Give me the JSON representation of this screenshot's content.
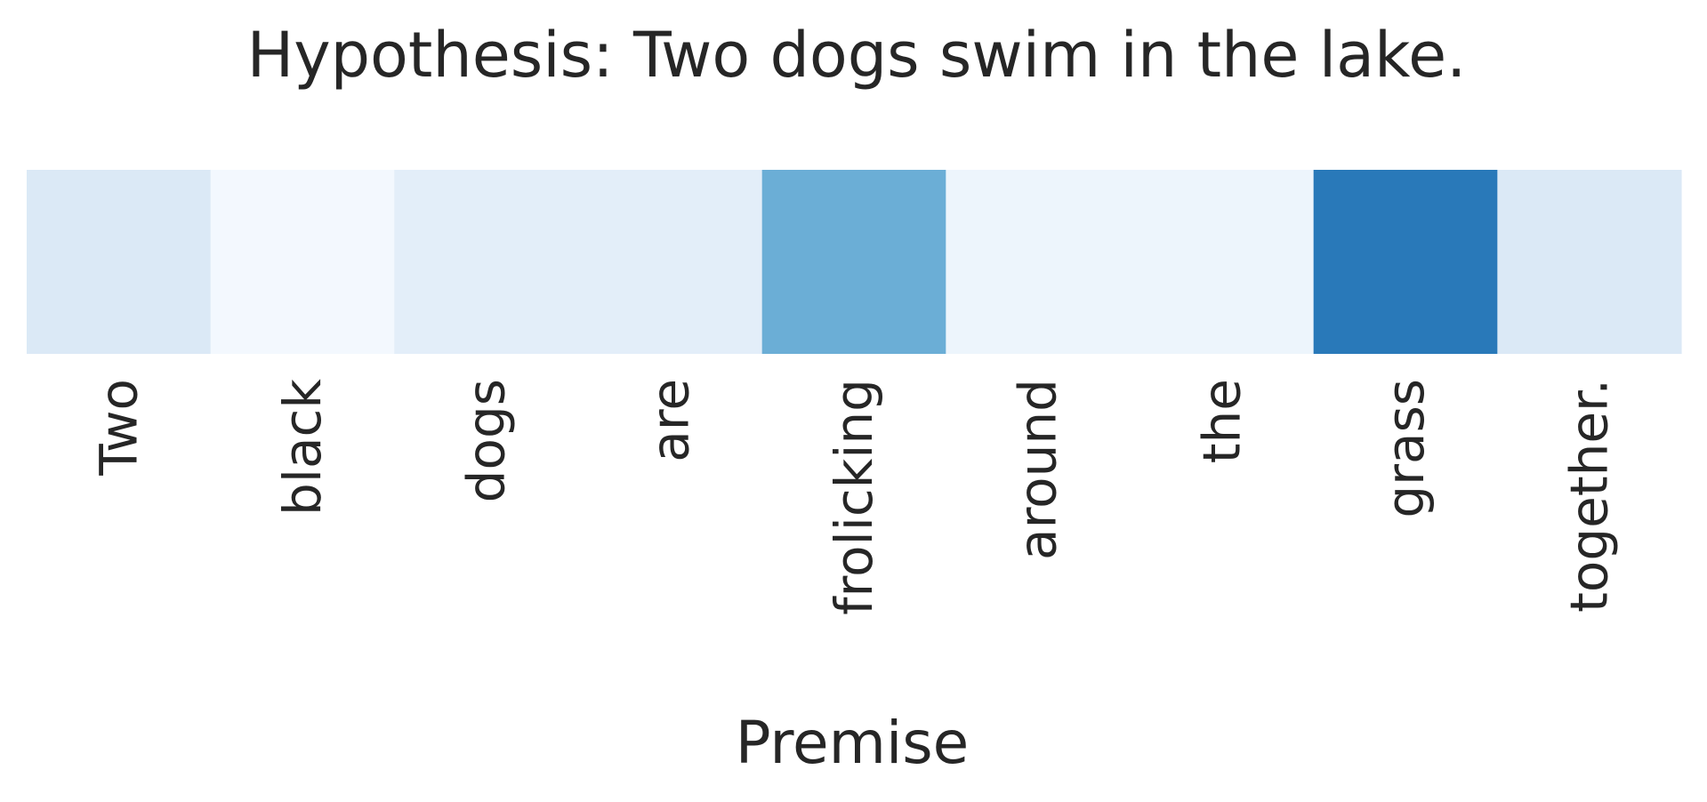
{
  "chart_data": {
    "type": "heatmap",
    "title": "Hypothesis: Two dogs swim in the lake.",
    "xlabel": "Premise",
    "ylabel": "",
    "categories": [
      "Two",
      "black",
      "dogs",
      "are",
      "frolicking",
      "around",
      "the",
      "grass",
      "together."
    ],
    "values": [
      0.14,
      0.02,
      0.1,
      0.1,
      0.5,
      0.05,
      0.05,
      0.72,
      0.14
    ],
    "colormap": "Blues",
    "colorbar": false,
    "grid": false,
    "legend": "none"
  }
}
